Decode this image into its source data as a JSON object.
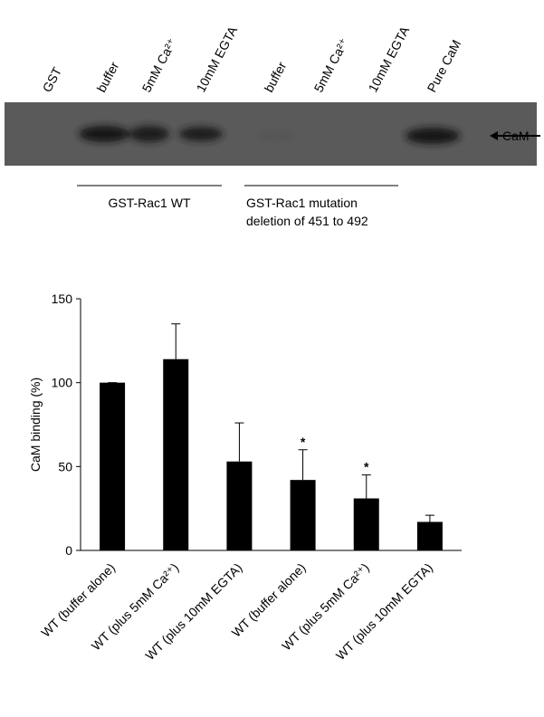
{
  "blot": {
    "lanes": [
      "GST",
      "buffer",
      "5mM Ca²⁺",
      "10mM EGTA",
      "buffer",
      "5mM Ca²⁺",
      "10mM EGTA",
      "Pure CaM"
    ],
    "band_label": "CaM",
    "groups": [
      {
        "lines": [
          "GST-Rac1 WT"
        ]
      },
      {
        "lines": [
          "GST-Rac1 mutation",
          "deletion of 451 to 492"
        ]
      }
    ]
  },
  "chart_data": {
    "type": "bar",
    "ylabel": "CaM binding (%)",
    "categories": [
      "WT (buffer alone)",
      "WT (plus 5mM Ca²⁺)",
      "WT (plus 10mM EGTA)",
      "WT (buffer alone)",
      "WT (plus 5mM Ca²⁺)",
      "WT (plus 10mM EGTA)"
    ],
    "values": [
      100,
      114,
      53,
      42,
      31,
      17
    ],
    "errors": [
      0,
      21,
      23,
      18,
      14,
      4
    ],
    "markers": [
      null,
      null,
      null,
      "*",
      "*",
      null
    ],
    "color": "#000000",
    "ylim": [
      0,
      150
    ],
    "yticks": [
      0,
      50,
      100,
      150
    ],
    "grid": false
  }
}
